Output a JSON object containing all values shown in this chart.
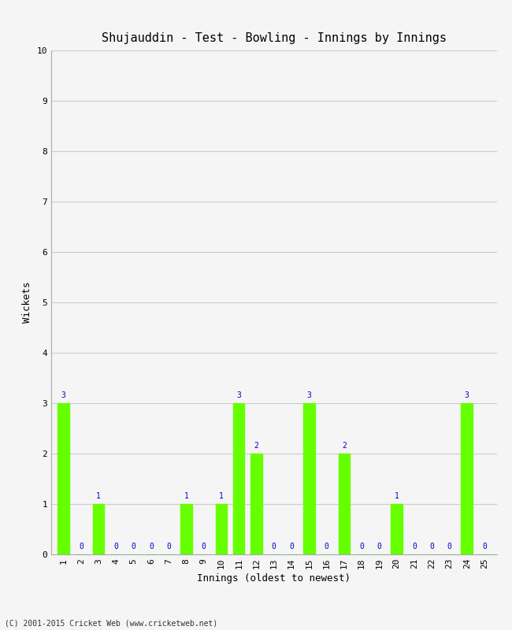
{
  "title": "Shujauddin - Test - Bowling - Innings by Innings",
  "xlabel": "Innings (oldest to newest)",
  "ylabel": "Wickets",
  "innings": [
    1,
    2,
    3,
    4,
    5,
    6,
    7,
    8,
    9,
    10,
    11,
    12,
    13,
    14,
    15,
    16,
    17,
    18,
    19,
    20,
    21,
    22,
    23,
    24,
    25
  ],
  "wickets": [
    3,
    0,
    1,
    0,
    0,
    0,
    0,
    1,
    0,
    1,
    3,
    2,
    0,
    0,
    3,
    0,
    2,
    0,
    0,
    1,
    0,
    0,
    0,
    3,
    0
  ],
  "bar_color": "#66ff00",
  "label_color": "#0000cc",
  "background_color": "#f5f5f5",
  "ylim": [
    0,
    10
  ],
  "yticks": [
    0,
    1,
    2,
    3,
    4,
    5,
    6,
    7,
    8,
    9,
    10
  ],
  "grid_color": "#cccccc",
  "title_fontsize": 11,
  "axis_label_fontsize": 9,
  "bar_label_fontsize": 7,
  "tick_fontsize": 8,
  "copyright": "(C) 2001-2015 Cricket Web (www.cricketweb.net)"
}
